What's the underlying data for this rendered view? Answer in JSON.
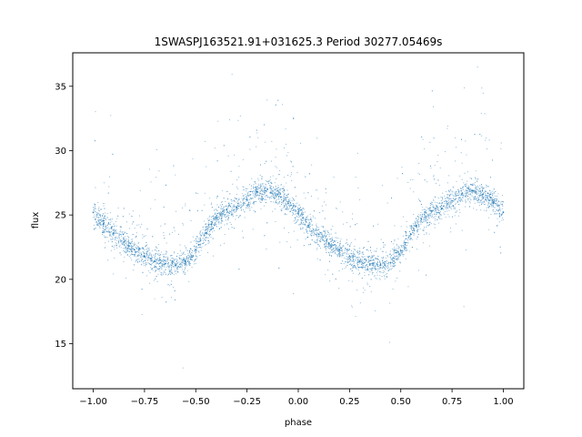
{
  "chart_data": {
    "type": "scatter",
    "title": "1SWASPJ163521.91+031625.3 Period 30277.05469s",
    "xlabel": "phase",
    "ylabel": "flux",
    "xlim": [
      -1.1,
      1.1
    ],
    "ylim": [
      11.5,
      37.6
    ],
    "xticks": [
      -1.0,
      -0.75,
      -0.5,
      -0.25,
      0.0,
      0.25,
      0.5,
      0.75,
      1.0
    ],
    "xtick_labels": [
      "−1.00",
      "−0.75",
      "−0.50",
      "−0.25",
      "0.00",
      "0.25",
      "0.50",
      "0.75",
      "1.00"
    ],
    "yticks": [
      15,
      20,
      25,
      30,
      35
    ],
    "ytick_labels": [
      "15",
      "20",
      "25",
      "30",
      "35"
    ],
    "grid": false,
    "marker_color": "#1f77b4",
    "series": [
      {
        "x": [
          -1.0,
          -0.95,
          -0.9,
          -0.85,
          -0.8,
          -0.75,
          -0.7,
          -0.65,
          -0.6,
          -0.55,
          -0.5,
          -0.45,
          -0.4,
          -0.35,
          -0.3,
          -0.25,
          -0.2,
          -0.15,
          -0.1,
          -0.05,
          0.0,
          0.05,
          0.1,
          0.15,
          0.2,
          0.25,
          0.3,
          0.35,
          0.4,
          0.45,
          0.5,
          0.55,
          0.6,
          0.65,
          0.7,
          0.75,
          0.8,
          0.85,
          0.9,
          0.95,
          1.0
        ],
        "y": [
          25.2,
          24.3,
          23.6,
          22.9,
          22.3,
          21.8,
          21.4,
          21.2,
          21.1,
          21.4,
          22.3,
          23.6,
          24.8,
          25.4,
          25.6,
          26.2,
          26.8,
          27.0,
          26.6,
          25.9,
          25.1,
          24.2,
          23.5,
          22.8,
          22.3,
          21.8,
          21.4,
          21.2,
          21.1,
          21.3,
          22.2,
          23.5,
          24.7,
          25.3,
          25.5,
          26.1,
          26.7,
          26.9,
          26.6,
          26.0,
          25.2
        ]
      }
    ]
  }
}
